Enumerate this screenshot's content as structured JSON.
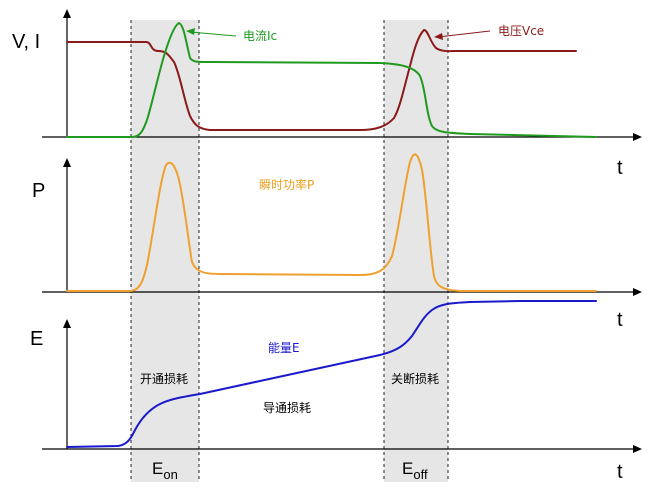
{
  "panel_top": {
    "y_label": "V, I",
    "x_label": "t",
    "current_label": "电流Ic",
    "voltage_label": "电压Vce"
  },
  "panel_mid": {
    "y_label": "P",
    "x_label": "t",
    "power_label": "瞬时功率P"
  },
  "panel_bot": {
    "y_label": "E",
    "x_label": "t",
    "energy_label": "能量E",
    "turn_on_loss": "开通损耗",
    "conduction_loss": "导通损耗",
    "turn_off_loss": "关断损耗"
  },
  "bottom_axis": {
    "x_label": "t",
    "e_on_base": "E",
    "e_on_sub": "on",
    "e_off_base": "E",
    "e_off_sub": "off"
  },
  "colors": {
    "current": "#1f9a1f",
    "voltage": "#8b1a1a",
    "power": "#f0a030",
    "energy": "#1a1acc",
    "band": "#e6e6e6"
  }
}
